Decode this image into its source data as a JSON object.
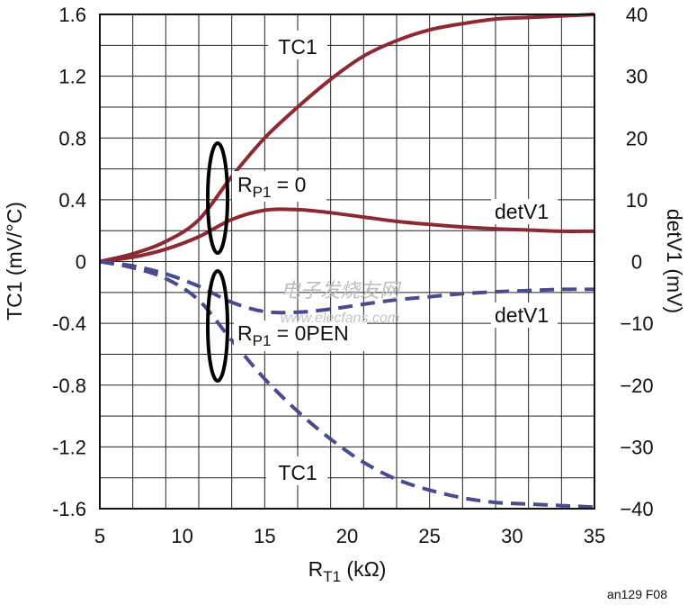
{
  "chart_data": {
    "type": "line",
    "xlabel": "R",
    "xlabel_sub": "T1",
    "xlabel_unit": " (kΩ)",
    "ylabel_left": "TC1 (mV/°C)",
    "ylabel_right": "detV1 (mV)",
    "xlim": [
      5,
      35
    ],
    "ylim_left": [
      -1.6,
      1.6
    ],
    "ylim_right": [
      -40,
      40
    ],
    "x_ticks": [
      "5",
      "10",
      "15",
      "20",
      "25",
      "30",
      "35"
    ],
    "y_left_ticks": [
      "1.6",
      "1.2",
      "0.8",
      "0.4",
      "0",
      "-0.4",
      "-0.8",
      "-1.2",
      "-1.6"
    ],
    "y_right_ticks": [
      "40",
      "30",
      "20",
      "10",
      "0",
      "−10",
      "−20",
      "−30",
      "−40"
    ],
    "grid": true,
    "series": [
      {
        "name": "TC1",
        "condition": "RP1 = 0",
        "axis": "left",
        "style": "solid",
        "color": "#8b2a35",
        "x": [
          5,
          7,
          9,
          11,
          13,
          15,
          17,
          19,
          21,
          23,
          25,
          27,
          29,
          31,
          33,
          35
        ],
        "y": [
          0.0,
          0.05,
          0.13,
          0.27,
          0.55,
          0.8,
          1.0,
          1.18,
          1.33,
          1.43,
          1.5,
          1.54,
          1.57,
          1.58,
          1.59,
          1.6
        ]
      },
      {
        "name": "detV1",
        "condition": "RP1 = 0",
        "axis": "right",
        "style": "solid",
        "color": "#8b2a35",
        "x": [
          5,
          7,
          9,
          11,
          13,
          15,
          17,
          19,
          21,
          23,
          25,
          27,
          29,
          31,
          33,
          35
        ],
        "y": [
          0.0,
          0.7,
          2.0,
          4.0,
          6.8,
          8.3,
          8.4,
          7.9,
          7.2,
          6.5,
          6.0,
          5.6,
          5.3,
          5.1,
          4.9,
          4.9
        ]
      },
      {
        "name": "detV1",
        "condition": "RP1 = 0PEN",
        "axis": "right",
        "style": "dashed",
        "color": "#4a4a8c",
        "x": [
          5,
          7,
          9,
          11,
          13,
          15,
          17,
          19,
          21,
          23,
          25,
          27,
          29,
          31,
          33,
          35
        ],
        "y": [
          0.0,
          -0.7,
          -2.0,
          -4.0,
          -6.6,
          -8.1,
          -8.2,
          -7.7,
          -6.9,
          -6.2,
          -5.7,
          -5.2,
          -4.9,
          -4.7,
          -4.5,
          -4.5
        ]
      },
      {
        "name": "TC1",
        "condition": "RP1 = 0PEN",
        "axis": "left",
        "style": "dashed",
        "color": "#4a4a8c",
        "x": [
          5,
          7,
          9,
          11,
          13,
          15,
          17,
          19,
          21,
          23,
          25,
          27,
          29,
          31,
          33,
          35
        ],
        "y": [
          0.0,
          -0.04,
          -0.11,
          -0.25,
          -0.51,
          -0.76,
          -0.97,
          -1.15,
          -1.3,
          -1.41,
          -1.48,
          -1.53,
          -1.56,
          -1.57,
          -1.58,
          -1.59
        ]
      }
    ],
    "annotations": {
      "tc1_top": "TC1",
      "detv1_top": "detV1",
      "detv1_bottom": "detV1",
      "tc1_bottom": "TC1",
      "rp1_zero_main": "R",
      "rp1_zero_sub": "P1",
      "rp1_zero_value": " = 0",
      "rp1_open_main": "R",
      "rp1_open_sub": "P1",
      "rp1_open_value": " = 0PEN"
    }
  },
  "watermark": {
    "chinese": "电子发烧友网",
    "url": "www.elecfans.com"
  },
  "figure_credit": "an129 F08"
}
